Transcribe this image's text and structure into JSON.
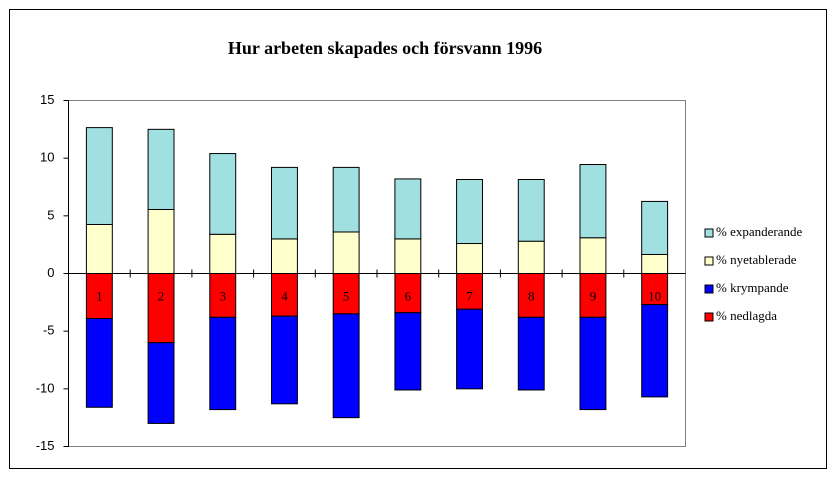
{
  "chart_data": {
    "type": "stacked_bar",
    "title": "Hur arbeten skapades och försvann 1996",
    "categories": [
      "1",
      "2",
      "3",
      "4",
      "5",
      "6",
      "7",
      "8",
      "9",
      "10"
    ],
    "series": [
      {
        "name": "% expanderande",
        "color": "#a0e0e0",
        "values": [
          8.4,
          6.95,
          7.0,
          6.2,
          5.6,
          5.2,
          5.55,
          5.35,
          6.35,
          4.6
        ]
      },
      {
        "name": "% nyetablerade",
        "color": "#ffffcc",
        "values": [
          4.25,
          5.55,
          3.4,
          3.0,
          3.6,
          3.0,
          2.6,
          2.8,
          3.1,
          1.65
        ]
      },
      {
        "name": "% krympande",
        "color": "#0000ff",
        "values": [
          -7.7,
          -7.0,
          -8.0,
          -7.6,
          -9.0,
          -6.7,
          -6.9,
          -6.3,
          -8.0,
          -8.0
        ]
      },
      {
        "name": "% nedlagda",
        "color": "#ff0000",
        "values": [
          -3.9,
          -6.0,
          -3.8,
          -3.7,
          -3.5,
          -3.4,
          -3.1,
          -3.8,
          -3.8,
          -2.7
        ]
      }
    ],
    "ylim": [
      -15,
      15
    ],
    "yticks": [
      -15,
      -10,
      -5,
      0,
      5,
      10,
      15
    ],
    "grid": false,
    "legend": "right"
  }
}
